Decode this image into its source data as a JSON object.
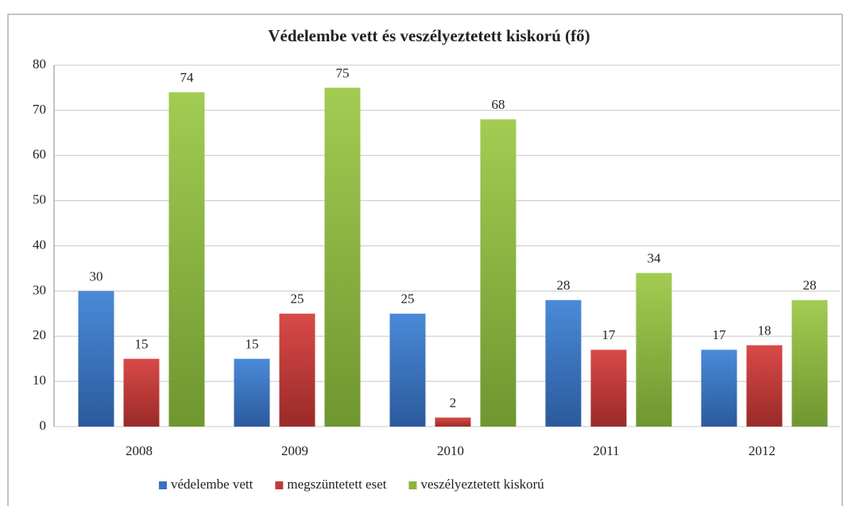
{
  "chart_data": {
    "type": "bar",
    "title": "Védelembe vett és veszélyeztetett kiskorú (fő)",
    "categories": [
      "2008",
      "2009",
      "2010",
      "2011",
      "2012"
    ],
    "series": [
      {
        "name": "védelembe vett",
        "color": "#3a70c0",
        "values": [
          30,
          15,
          25,
          28,
          17
        ]
      },
      {
        "name": "megszüntetett eset",
        "color": "#c0393a",
        "values": [
          15,
          25,
          2,
          17,
          18
        ]
      },
      {
        "name": "veszélyeztetett kiskorú",
        "color": "#8bb540",
        "values": [
          74,
          75,
          68,
          34,
          28
        ]
      }
    ],
    "ylim": [
      0,
      80
    ],
    "yticks": [
      0,
      10,
      20,
      30,
      40,
      50,
      60,
      70,
      80
    ],
    "grid": true,
    "legend": "bottom"
  }
}
